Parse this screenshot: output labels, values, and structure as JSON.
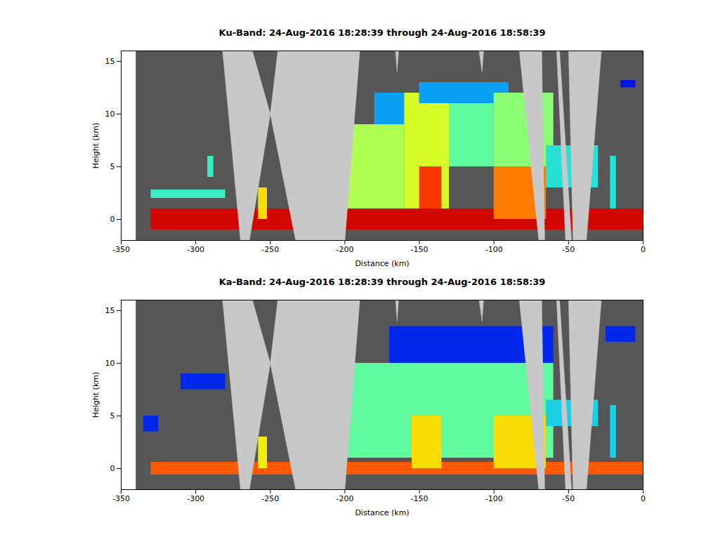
{
  "chart_data": [
    {
      "type": "heatmap",
      "title": "Ku-Band: 24-Aug-2016 18:28:39 through 24-Aug-2016 18:58:39",
      "xlabel": "Distance (km)",
      "ylabel": "Height (km)",
      "xlim": [
        -350,
        0
      ],
      "ylim": [
        -2,
        16
      ],
      "xticks": [
        -350,
        -300,
        -250,
        -200,
        -150,
        -100,
        -50,
        0
      ],
      "yticks": [
        0,
        5,
        10,
        15
      ],
      "zlim": [
        0,
        50
      ],
      "data_extent": [
        -340,
        0
      ],
      "gaps": [
        [
          [
            -282,
            16
          ],
          [
            -262,
            16
          ],
          [
            -250,
            10
          ],
          [
            -264,
            -2
          ],
          [
            -270,
            -2
          ]
        ],
        [
          [
            -250,
            10
          ],
          [
            -245,
            16
          ],
          [
            -190,
            16
          ],
          [
            -200,
            -2
          ],
          [
            -233,
            -2
          ]
        ],
        [
          [
            -166,
            16
          ],
          [
            -164,
            16
          ],
          [
            -165,
            14
          ]
        ],
        [
          [
            -110,
            16
          ],
          [
            -107,
            16
          ],
          [
            -108,
            14
          ]
        ],
        [
          [
            -83,
            16
          ],
          [
            -68,
            16
          ],
          [
            -66,
            -2
          ],
          [
            -70,
            -2
          ]
        ],
        [
          [
            -58,
            16
          ],
          [
            -56,
            16
          ],
          [
            -48,
            -2
          ],
          [
            -52,
            -2
          ]
        ],
        [
          [
            -50,
            16
          ],
          [
            -28,
            16
          ],
          [
            -38,
            -2
          ],
          [
            -47,
            -2
          ]
        ]
      ],
      "cells": [
        {
          "x1": -330,
          "x2": 0,
          "y1": -1,
          "y2": 1,
          "value": 45
        },
        {
          "x1": -330,
          "x2": -280,
          "y1": 2,
          "y2": 2.8,
          "value": 16
        },
        {
          "x1": -292,
          "x2": -288,
          "y1": 4,
          "y2": 6,
          "value": 16
        },
        {
          "x1": -258,
          "x2": -252,
          "y1": 0,
          "y2": 3,
          "value": 30
        },
        {
          "x1": -200,
          "x2": -160,
          "y1": 1,
          "y2": 9,
          "value": 22
        },
        {
          "x1": -180,
          "x2": -150,
          "y1": 9,
          "y2": 12,
          "value": 12
        },
        {
          "x1": -160,
          "x2": -130,
          "y1": 1,
          "y2": 12,
          "value": 25
        },
        {
          "x1": -150,
          "x2": -90,
          "y1": 11,
          "y2": 13,
          "value": 12
        },
        {
          "x1": -130,
          "x2": -100,
          "y1": 5,
          "y2": 11,
          "value": 18
        },
        {
          "x1": -100,
          "x2": -60,
          "y1": 5,
          "y2": 12,
          "value": 20
        },
        {
          "x1": -150,
          "x2": -135,
          "y1": 1,
          "y2": 5,
          "value": 40
        },
        {
          "x1": -100,
          "x2": -65,
          "y1": 0,
          "y2": 5,
          "value": 36
        },
        {
          "x1": -65,
          "x2": -30,
          "y1": 3,
          "y2": 7,
          "value": 15
        },
        {
          "x1": -22,
          "x2": -18,
          "y1": 1,
          "y2": 6,
          "value": 15
        },
        {
          "x1": -15,
          "x2": -5,
          "y1": 12.5,
          "y2": 13.2,
          "value": 6
        }
      ]
    },
    {
      "type": "heatmap",
      "title": "Ka-Band: 24-Aug-2016 18:28:39 through 24-Aug-2016 18:58:39",
      "xlabel": "Distance (km)",
      "ylabel": "Height (km)",
      "xlim": [
        -350,
        0
      ],
      "ylim": [
        -2,
        16
      ],
      "xticks": [
        -350,
        -300,
        -250,
        -200,
        -150,
        -100,
        -50,
        0
      ],
      "yticks": [
        0,
        5,
        10,
        15
      ],
      "zlim": [
        0,
        50
      ],
      "data_extent": [
        -340,
        0
      ],
      "gaps": [
        [
          [
            -282,
            16
          ],
          [
            -262,
            16
          ],
          [
            -250,
            10
          ],
          [
            -264,
            -2
          ],
          [
            -270,
            -2
          ]
        ],
        [
          [
            -250,
            10
          ],
          [
            -245,
            16
          ],
          [
            -190,
            16
          ],
          [
            -200,
            -2
          ],
          [
            -233,
            -2
          ]
        ],
        [
          [
            -166,
            16
          ],
          [
            -164,
            16
          ],
          [
            -165,
            14
          ]
        ],
        [
          [
            -110,
            16
          ],
          [
            -107,
            16
          ],
          [
            -108,
            14
          ]
        ],
        [
          [
            -83,
            16
          ],
          [
            -68,
            16
          ],
          [
            -66,
            -2
          ],
          [
            -70,
            -2
          ]
        ],
        [
          [
            -58,
            16
          ],
          [
            -56,
            16
          ],
          [
            -48,
            -2
          ],
          [
            -52,
            -2
          ]
        ],
        [
          [
            -50,
            16
          ],
          [
            -28,
            16
          ],
          [
            -38,
            -2
          ],
          [
            -47,
            -2
          ]
        ]
      ],
      "cells": [
        {
          "x1": -330,
          "x2": 0,
          "y1": -0.6,
          "y2": 0.6,
          "value": 38
        },
        {
          "x1": -335,
          "x2": -325,
          "y1": 3.5,
          "y2": 5,
          "value": 7
        },
        {
          "x1": -310,
          "x2": -280,
          "y1": 7.5,
          "y2": 9,
          "value": 7
        },
        {
          "x1": -258,
          "x2": -252,
          "y1": 0,
          "y2": 3,
          "value": 28
        },
        {
          "x1": -170,
          "x2": -60,
          "y1": 10,
          "y2": 13.5,
          "value": 7
        },
        {
          "x1": -200,
          "x2": -60,
          "y1": 1,
          "y2": 10,
          "value": 18
        },
        {
          "x1": -155,
          "x2": -135,
          "y1": 0,
          "y2": 5,
          "value": 30
        },
        {
          "x1": -100,
          "x2": -65,
          "y1": 0,
          "y2": 5,
          "value": 30
        },
        {
          "x1": -65,
          "x2": -30,
          "y1": 4,
          "y2": 6.5,
          "value": 14
        },
        {
          "x1": -22,
          "x2": -18,
          "y1": 1,
          "y2": 6,
          "value": 14
        },
        {
          "x1": -25,
          "x2": -5,
          "y1": 12,
          "y2": 13.5,
          "value": 7
        }
      ]
    }
  ]
}
